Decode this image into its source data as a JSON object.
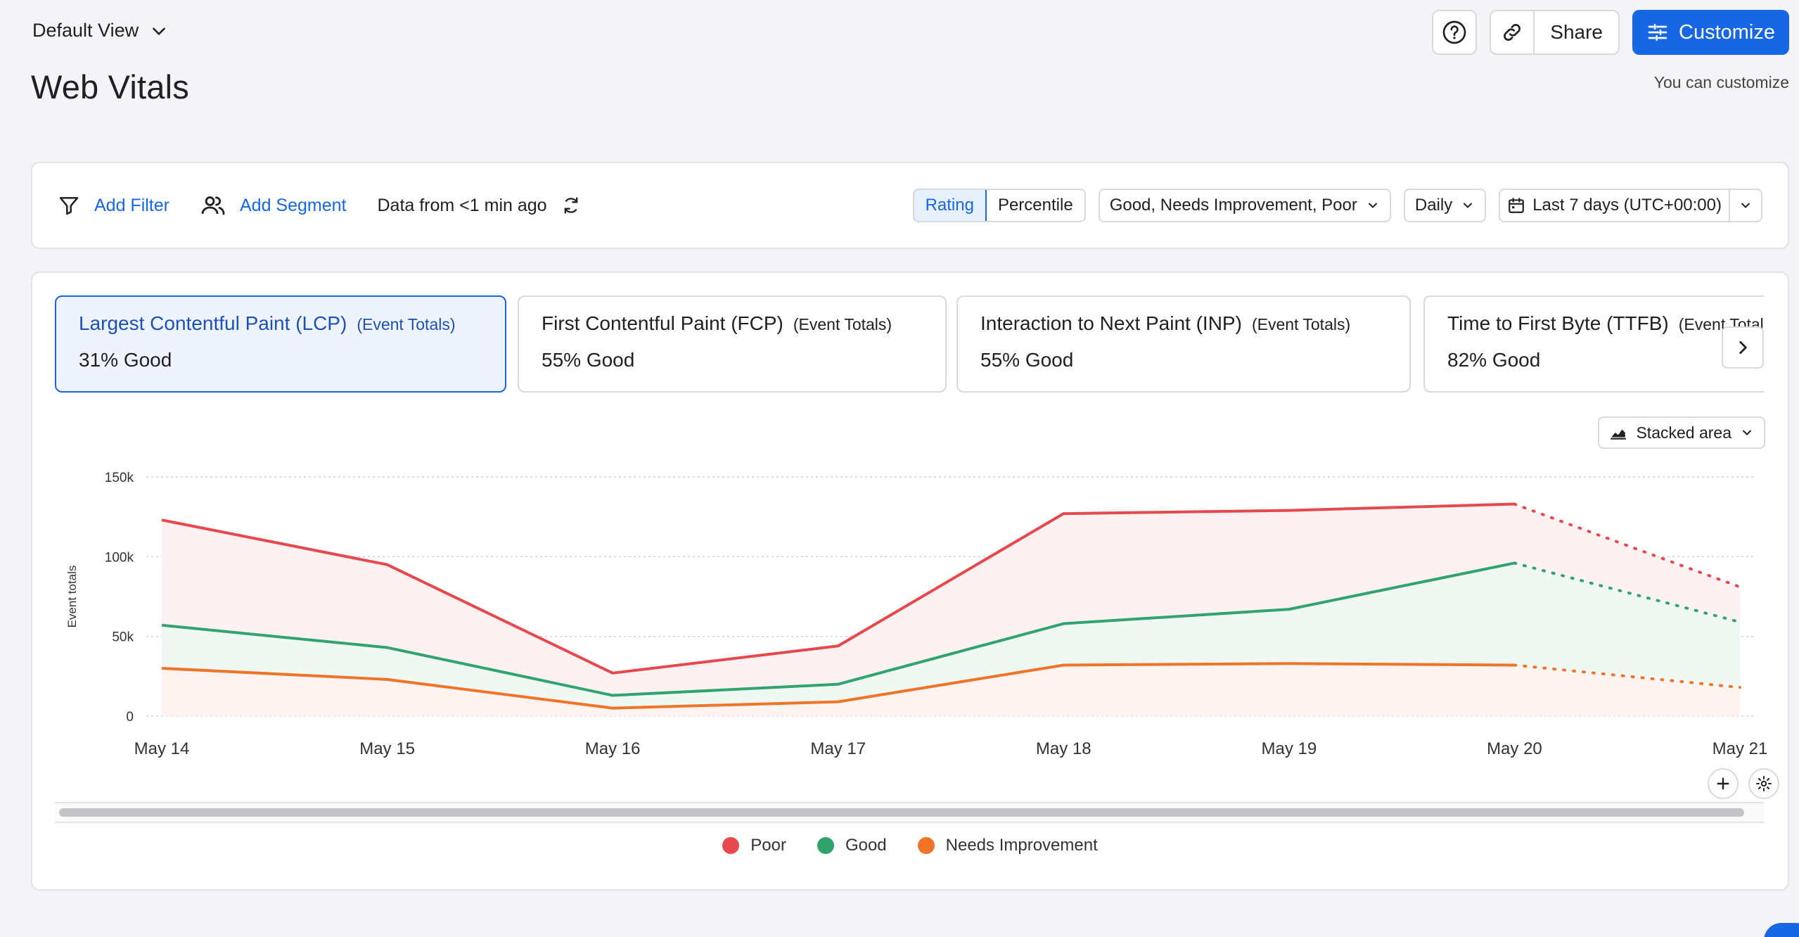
{
  "header": {
    "view_label": "Default View",
    "title": "Web Vitals",
    "share_label": "Share",
    "customize_label": "Customize",
    "customize_hint": "You can customize"
  },
  "filters": {
    "add_filter": "Add Filter",
    "add_segment": "Add Segment",
    "data_freshness": "Data from <1 min ago",
    "toggle": [
      "Rating",
      "Percentile"
    ],
    "toggle_active": "Rating",
    "ratings_select": "Good, Needs Improvement, Poor",
    "interval_select": "Daily",
    "range_select": "Last 7 days (UTC+00:00)"
  },
  "metrics": [
    {
      "name": "Largest Contentful Paint (LCP)",
      "sub": "(Event Totals)",
      "value": "31% Good"
    },
    {
      "name": "First Contentful Paint (FCP)",
      "sub": "(Event Totals)",
      "value": "55% Good"
    },
    {
      "name": "Interaction to Next Paint (INP)",
      "sub": "(Event Totals)",
      "value": "55% Good"
    },
    {
      "name": "Time to First Byte (TTFB)",
      "sub": "(Event Totals)",
      "value": "82% Good"
    }
  ],
  "chart_type_label": "Stacked area",
  "colors": {
    "accent": "#1766e4",
    "poor": "#e5484d",
    "good": "#30a46c",
    "needs_improvement": "#f07427"
  },
  "chart_data": {
    "type": "area",
    "stacked": true,
    "categories": [
      "May 14",
      "May 15",
      "May 16",
      "May 17",
      "May 18",
      "May 19",
      "May 20",
      "May 21"
    ],
    "ylabel": "Event totals",
    "ylim": [
      0,
      150000
    ],
    "yticks": [
      "0",
      "50k",
      "100k",
      "150k"
    ],
    "ytick_values": [
      0,
      50000,
      100000,
      150000
    ],
    "incomplete_from_index": 6,
    "grid": true,
    "series": [
      {
        "name": "Poor",
        "color": "#e5484d",
        "totals": [
          123000,
          95000,
          27000,
          44000,
          127000,
          129000,
          133000,
          81000
        ]
      },
      {
        "name": "Good",
        "color": "#30a46c",
        "totals": [
          57000,
          43000,
          13000,
          20000,
          58000,
          67000,
          96000,
          59000
        ]
      },
      {
        "name": "Needs Improvement",
        "color": "#f07427",
        "totals": [
          30000,
          23000,
          5000,
          9000,
          32000,
          33000,
          32000,
          18000
        ]
      }
    ],
    "legend": [
      "Poor",
      "Good",
      "Needs Improvement"
    ],
    "legend_position": "bottom"
  }
}
